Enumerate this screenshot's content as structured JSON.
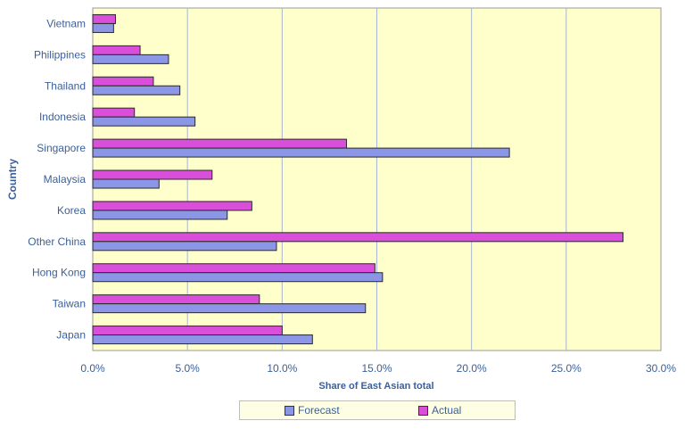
{
  "chart_data": {
    "type": "bar",
    "orientation": "horizontal",
    "categories": [
      "Vietnam",
      "Philippines",
      "Thailand",
      "Indonesia",
      "Singapore",
      "Malaysia",
      "Korea",
      "Other China",
      "Hong Kong",
      "Taiwan",
      "Japan"
    ],
    "series": [
      {
        "name": "Actual",
        "color": "#d94fd9",
        "values": [
          1.2,
          2.5,
          3.2,
          2.2,
          13.4,
          6.3,
          8.4,
          28.0,
          14.9,
          8.8,
          10.0
        ]
      },
      {
        "name": "Forecast",
        "color": "#8b96e6",
        "values": [
          1.1,
          4.0,
          4.6,
          5.4,
          22.0,
          3.5,
          7.1,
          9.7,
          15.3,
          14.4,
          11.6
        ]
      }
    ],
    "xlabel": "Share of East Asian total",
    "ylabel": "Country",
    "xlim": [
      0,
      30
    ],
    "xticks": [
      "0.0%",
      "5.0%",
      "10.0%",
      "15.0%",
      "20.0%",
      "25.0%",
      "30.0%"
    ],
    "grid": "vertical",
    "plot_background": "#ffffcc",
    "legend": [
      "Forecast",
      "Actual"
    ],
    "legend_position": "bottom"
  }
}
